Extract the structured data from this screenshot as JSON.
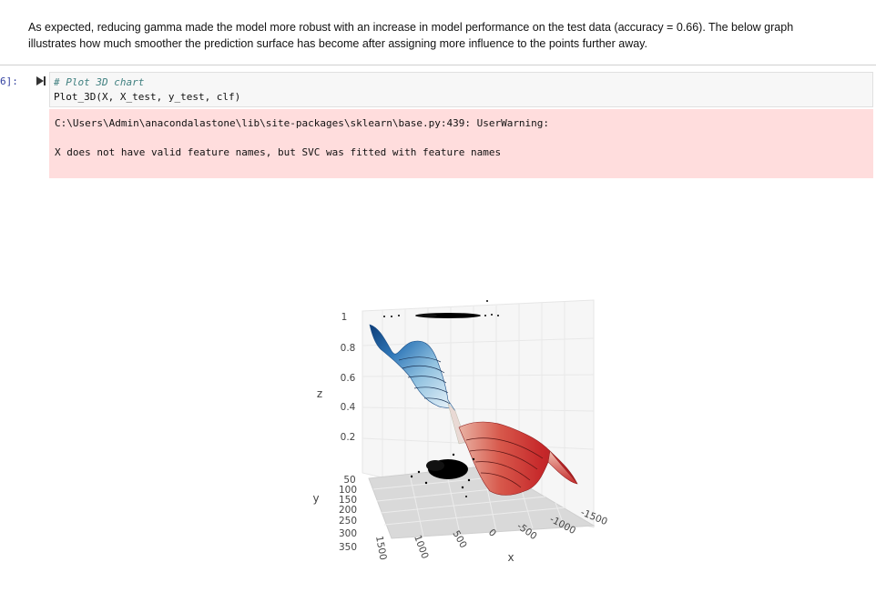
{
  "markdown": {
    "line1": "As expected, reducing gamma made the model more robust with an increase in model performance on the test data (accuracy = 0.66). The below graph",
    "line2": "illustrates how much smoother the prediction surface has become after assigning more influence to the points further away."
  },
  "cell": {
    "prompt": "6]:",
    "code_comment": "# Plot 3D chart",
    "code_line": "Plot_3D(X, X_test, y_test, clf)"
  },
  "warning": {
    "line1": "C:\\Users\\Admin\\anacondalastone\\lib\\site-packages\\sklearn\\base.py:439: UserWarning:",
    "line2": "X does not have valid feature names, but SVC was fitted with feature names"
  },
  "chart_data": {
    "type": "surface",
    "title": "",
    "axes": {
      "z": {
        "label": "z",
        "ticks": [
          "1",
          "0.8",
          "0.6",
          "0.4",
          "0.2"
        ]
      },
      "y": {
        "label": "y",
        "ticks": [
          "50",
          "100",
          "150",
          "200",
          "250",
          "300",
          "350"
        ]
      },
      "x": {
        "label": "x",
        "ticks": [
          "1500",
          "1000",
          "500",
          "0",
          "-500",
          "-1000",
          "-1500"
        ]
      }
    },
    "colors": {
      "class_blue": "#1f5fa8",
      "class_red": "#d23a3a",
      "points": "#000000"
    }
  },
  "colors": {
    "warning_bg": "#ffdddd",
    "code_bg": "#f7f7f7",
    "prompt": "#303f9f"
  }
}
